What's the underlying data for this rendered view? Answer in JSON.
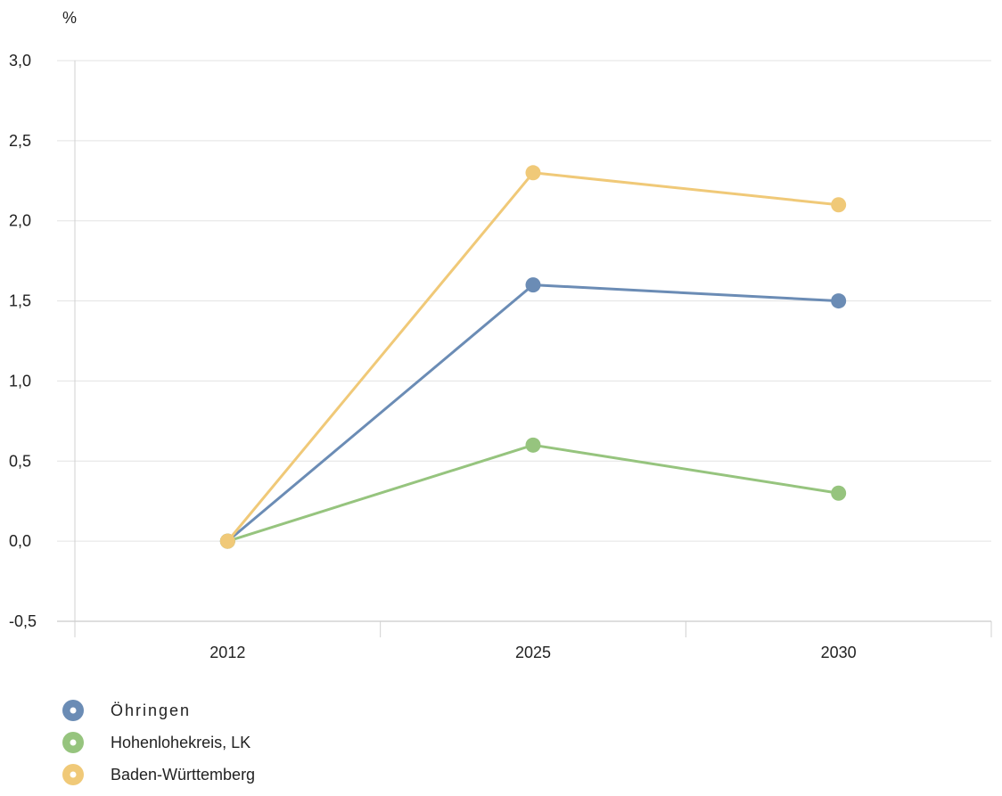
{
  "chart_data": {
    "type": "line",
    "ylabel": "%",
    "categories": [
      "2012",
      "2025",
      "2030"
    ],
    "ylim": [
      -0.5,
      3.0
    ],
    "yticks": [
      "3,0",
      "2,5",
      "2,0",
      "1,5",
      "1,0",
      "0,5",
      "0,0",
      "-0,5"
    ],
    "ytick_values": [
      3.0,
      2.5,
      2.0,
      1.5,
      1.0,
      0.5,
      0.0,
      -0.5
    ],
    "grid": true,
    "legend_position": "bottom-left",
    "series": [
      {
        "name": "Öhringen",
        "color": "#6b8cb5",
        "values": [
          0.0,
          1.6,
          1.5
        ]
      },
      {
        "name": "Hohenlohekreis, LK",
        "color": "#96c47e",
        "values": [
          0.0,
          0.6,
          0.3
        ]
      },
      {
        "name": "Baden-Württemberg",
        "color": "#f0c978",
        "values": [
          0.0,
          2.3,
          2.1
        ]
      }
    ]
  }
}
